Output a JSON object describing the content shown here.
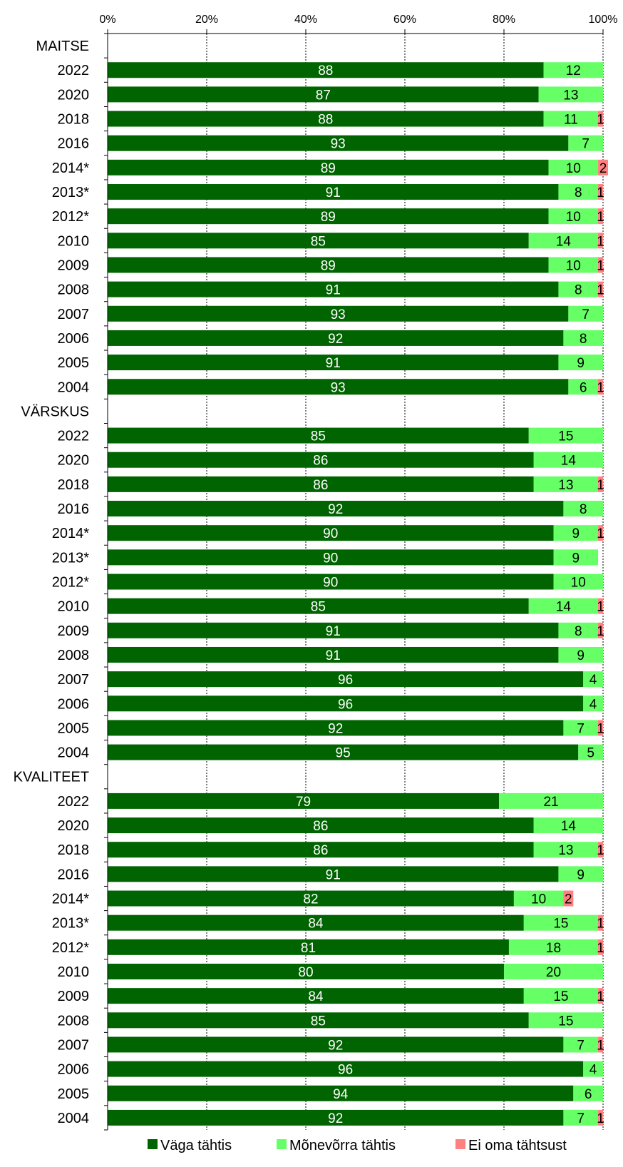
{
  "chart_data": {
    "type": "bar",
    "orientation": "horizontal",
    "stacked": true,
    "title": "",
    "xlim": [
      0,
      100
    ],
    "x_ticks": [
      "0%",
      "20%",
      "40%",
      "60%",
      "80%",
      "100%"
    ],
    "grid": true,
    "legend_position": "bottom",
    "colors": {
      "series": [
        "#006400",
        "#66ff66",
        "#ff8080"
      ],
      "label_text": [
        "#ffffff",
        "#000000",
        "#000000"
      ]
    },
    "legend": [
      "Väga tähtis",
      "Mõnevõrra tähtis",
      "Ei oma tähtsust"
    ],
    "rows": [
      {
        "label": "MAITSE",
        "header": true
      },
      {
        "label": "2022",
        "values": [
          88,
          12,
          null
        ]
      },
      {
        "label": "2020",
        "values": [
          87,
          13,
          null
        ]
      },
      {
        "label": "2018",
        "values": [
          88,
          11,
          1
        ]
      },
      {
        "label": "2016",
        "values": [
          93,
          7,
          null
        ]
      },
      {
        "label": "2014*",
        "values": [
          89,
          10,
          2
        ]
      },
      {
        "label": "2013*",
        "values": [
          91,
          8,
          1
        ]
      },
      {
        "label": "2012*",
        "values": [
          89,
          10,
          1
        ]
      },
      {
        "label": "2010",
        "values": [
          85,
          14,
          1
        ]
      },
      {
        "label": "2009",
        "values": [
          89,
          10,
          1
        ]
      },
      {
        "label": "2008",
        "values": [
          91,
          8,
          1
        ]
      },
      {
        "label": "2007",
        "values": [
          93,
          7,
          null
        ]
      },
      {
        "label": "2006",
        "values": [
          92,
          8,
          null
        ]
      },
      {
        "label": "2005",
        "values": [
          91,
          9,
          null
        ]
      },
      {
        "label": "2004",
        "values": [
          93,
          6,
          1
        ]
      },
      {
        "label": "VÄRSKUS",
        "header": true
      },
      {
        "label": "2022",
        "values": [
          85,
          15,
          null
        ]
      },
      {
        "label": "2020",
        "values": [
          86,
          14,
          null
        ]
      },
      {
        "label": "2018",
        "values": [
          86,
          13,
          1
        ]
      },
      {
        "label": "2016",
        "values": [
          92,
          8,
          null
        ]
      },
      {
        "label": "2014*",
        "values": [
          90,
          9,
          1
        ]
      },
      {
        "label": "2013*",
        "values": [
          90,
          9,
          null
        ]
      },
      {
        "label": "2012*",
        "values": [
          90,
          10,
          null
        ]
      },
      {
        "label": "2010",
        "values": [
          85,
          14,
          1
        ]
      },
      {
        "label": "2009",
        "values": [
          91,
          8,
          1
        ]
      },
      {
        "label": "2008",
        "values": [
          91,
          9,
          null
        ]
      },
      {
        "label": "2007",
        "values": [
          96,
          4,
          null
        ]
      },
      {
        "label": "2006",
        "values": [
          96,
          4,
          null
        ]
      },
      {
        "label": "2005",
        "values": [
          92,
          7,
          1
        ]
      },
      {
        "label": "2004",
        "values": [
          95,
          5,
          null
        ]
      },
      {
        "label": "KVALITEET",
        "header": true
      },
      {
        "label": "2022",
        "values": [
          79,
          21,
          null
        ]
      },
      {
        "label": "2020",
        "values": [
          86,
          14,
          null
        ]
      },
      {
        "label": "2018",
        "values": [
          86,
          13,
          1
        ]
      },
      {
        "label": "2016",
        "values": [
          91,
          9,
          null
        ]
      },
      {
        "label": "2014*",
        "values": [
          82,
          10,
          2
        ]
      },
      {
        "label": "2013*",
        "values": [
          84,
          15,
          1
        ]
      },
      {
        "label": "2012*",
        "values": [
          81,
          18,
          1
        ]
      },
      {
        "label": "2010",
        "values": [
          80,
          20,
          null
        ]
      },
      {
        "label": "2009",
        "values": [
          84,
          15,
          1
        ]
      },
      {
        "label": "2008",
        "values": [
          85,
          15,
          null
        ]
      },
      {
        "label": "2007",
        "values": [
          92,
          7,
          1
        ]
      },
      {
        "label": "2006",
        "values": [
          96,
          4,
          null
        ]
      },
      {
        "label": "2005",
        "values": [
          94,
          6,
          null
        ]
      },
      {
        "label": "2004",
        "values": [
          92,
          7,
          1
        ]
      }
    ]
  }
}
